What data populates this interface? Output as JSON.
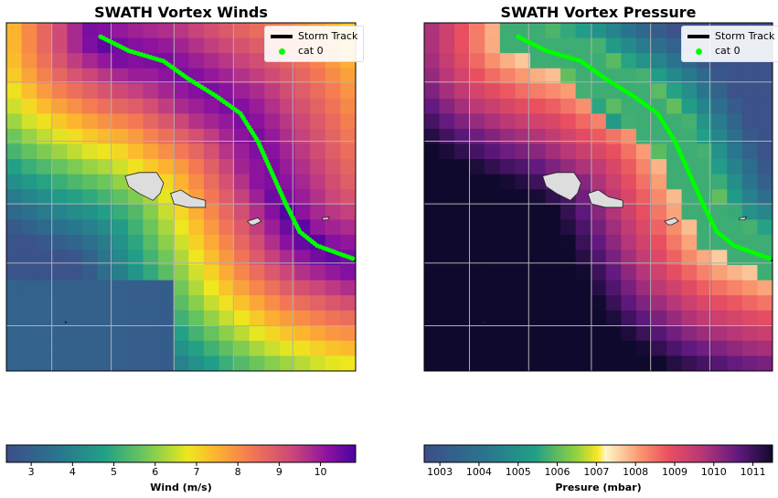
{
  "panels": [
    {
      "title": "SWATH Vortex Winds",
      "legend": {
        "track_label": "Storm Track",
        "cat_label": "cat 0"
      },
      "colorbar": {
        "label": "Wind (m/s)",
        "min": 2.4,
        "max": 10.85,
        "ticks": [
          "3",
          "4",
          "5",
          "6",
          "7",
          "8",
          "9",
          "10"
        ],
        "colormap": "plasma-reversed"
      }
    },
    {
      "title": "SWATH Vortex Pressure",
      "legend": {
        "track_label": "Storm Track",
        "cat_label": "cat 0"
      },
      "colorbar": {
        "label": "Presure (mbar)",
        "min": 1002.6,
        "max": 1011.5,
        "ticks": [
          "1003",
          "1004",
          "1005",
          "1006",
          "1007",
          "1008",
          "1009",
          "1010",
          "1011"
        ],
        "colormap": "viridis-to-magma"
      }
    }
  ],
  "colors": {
    "track": "#00ff00",
    "track_edge": "#000000",
    "land": "#dddddd",
    "grid": "#b0b0b0"
  }
}
